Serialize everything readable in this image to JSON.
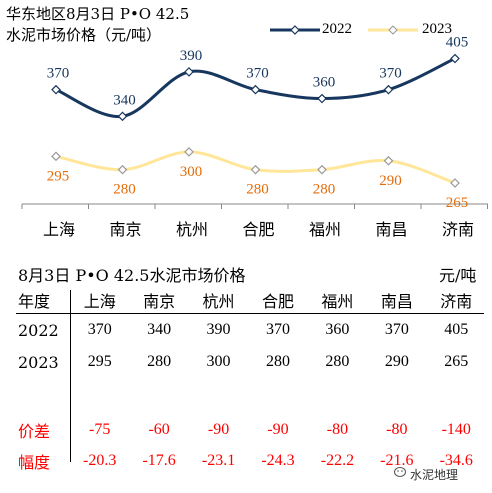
{
  "chart_data": {
    "type": "line",
    "title": "华东地区8月3日 P•O 42.5",
    "subtitle": "水泥市场价格（元/吨）",
    "categories": [
      "上海",
      "南京",
      "杭州",
      "合肥",
      "福州",
      "南昌",
      "济南"
    ],
    "series": [
      {
        "name": "2022",
        "values": [
          370,
          340,
          390,
          370,
          360,
          370,
          405
        ],
        "color": "#17375e",
        "label_color": "#17375e"
      },
      {
        "name": "2023",
        "values": [
          295,
          280,
          300,
          280,
          280,
          290,
          265
        ],
        "color": "#ffe699",
        "label_color": "#e46c0a"
      }
    ],
    "smooth": true,
    "marker": "diamond",
    "legend": "top-right",
    "grid": false
  },
  "table": {
    "title": "8月3日 P•O 42.5水泥市场价格",
    "unit": "元/吨",
    "corner": "年度",
    "columns": [
      "上海",
      "南京",
      "杭州",
      "合肥",
      "福州",
      "南昌",
      "济南"
    ],
    "rows": [
      {
        "label": "2022",
        "values": [
          "370",
          "340",
          "390",
          "370",
          "360",
          "370",
          "405"
        ]
      },
      {
        "label": "2023",
        "values": [
          "295",
          "280",
          "300",
          "280",
          "280",
          "290",
          "265"
        ]
      }
    ],
    "diff_rows": [
      {
        "label": "价差",
        "values": [
          "-75",
          "-60",
          "-90",
          "-90",
          "-80",
          "-80",
          "-140"
        ]
      },
      {
        "label": "幅度",
        "values": [
          "-20.3",
          "-17.6",
          "-23.1",
          "-24.3",
          "-22.2",
          "-21.6",
          "-34.6"
        ]
      }
    ],
    "diff_color": "#ff0000"
  },
  "watermark": {
    "text": "水泥地理",
    "icon": "wechat-icon"
  }
}
